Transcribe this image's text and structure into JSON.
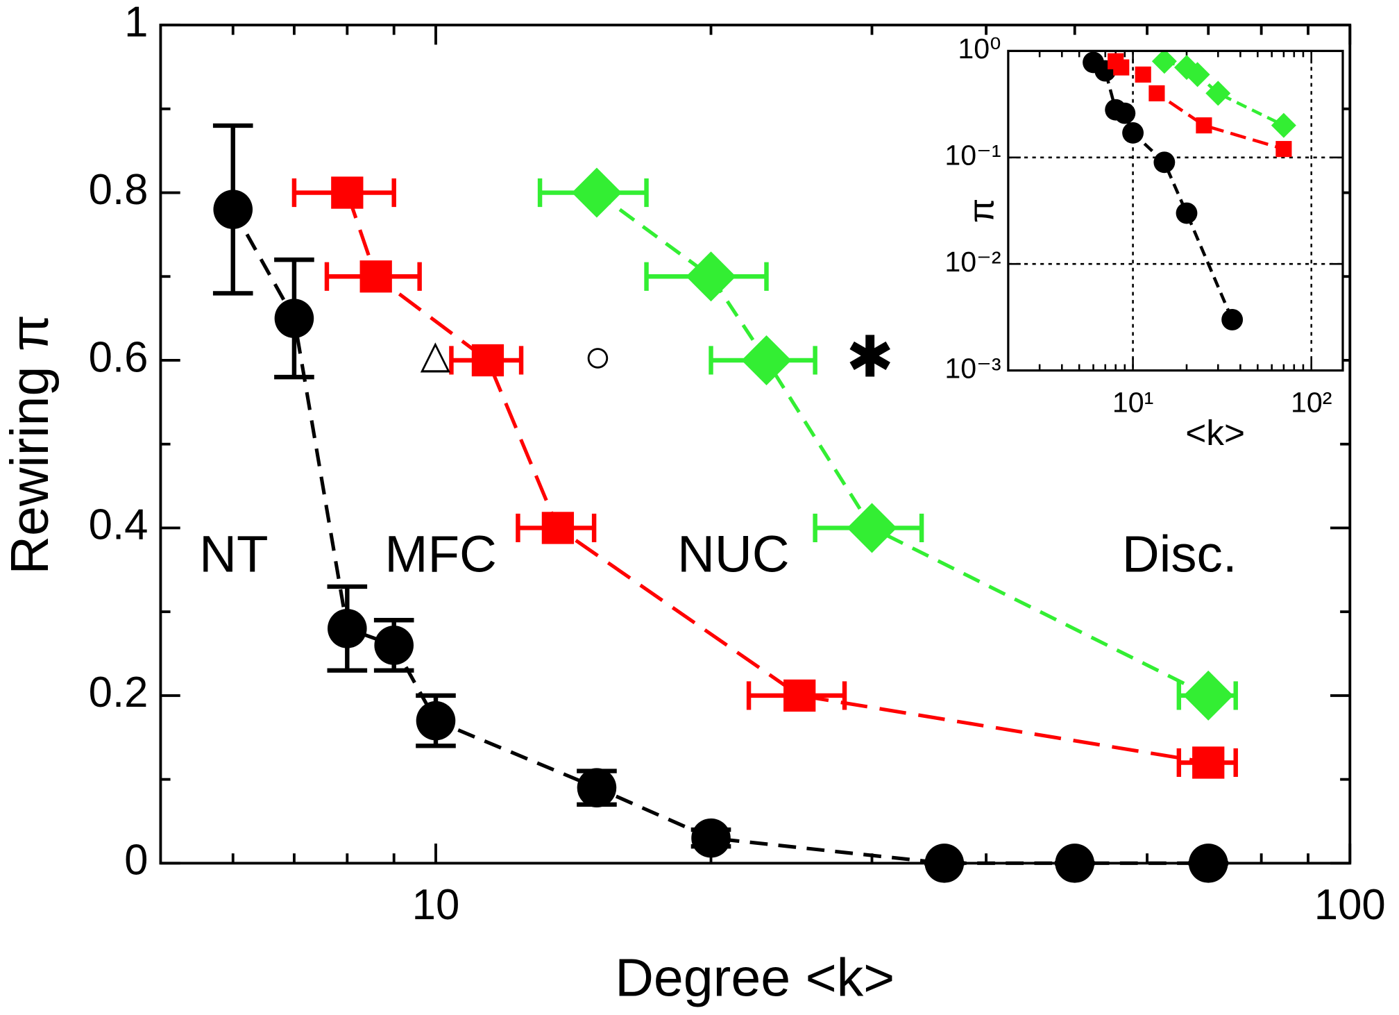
{
  "chart_data": [
    {
      "type": "scatter",
      "xlabel": "Degree <k>",
      "ylabel": "Rewiring π",
      "xscale": "log",
      "xlim": [
        5,
        100
      ],
      "xticks": [
        10,
        100
      ],
      "xminor": [
        6,
        7,
        8,
        9,
        20,
        30,
        40,
        50,
        60,
        70,
        80,
        90
      ],
      "ylim": [
        0,
        1
      ],
      "yticks": [
        0,
        0.2,
        0.4,
        0.6,
        0.8,
        1
      ],
      "yminor": [
        0.1,
        0.3,
        0.5,
        0.7,
        0.9
      ],
      "annotations": [
        "NT",
        "MFC",
        "NUC",
        "Disc.",
        "△",
        "○",
        "✱"
      ],
      "series": [
        {
          "color": "#000000",
          "marker": "circle",
          "dash": "short",
          "x": [
            6,
            7,
            8,
            9,
            10,
            15,
            20,
            36,
            50,
            70
          ],
          "values": [
            0.78,
            0.65,
            0.28,
            0.26,
            0.17,
            0.09,
            0.03,
            0,
            0,
            0
          ],
          "yerr": [
            0.1,
            0.07,
            0.05,
            0.03,
            0.03,
            0.02,
            0.01,
            0,
            0,
            0
          ]
        },
        {
          "color": "#ff0000",
          "marker": "square",
          "dash": "long",
          "x": [
            8,
            8.6,
            11.4,
            13.6,
            25,
            70
          ],
          "values": [
            0.8,
            0.7,
            0.6,
            0.4,
            0.2,
            0.12
          ],
          "xerr": [
            1,
            1,
            1,
            1.3,
            3,
            5
          ]
        },
        {
          "color": "#33ee33",
          "marker": "diamond",
          "dash": "short",
          "x": [
            15,
            20,
            23,
            30,
            70
          ],
          "values": [
            0.8,
            0.7,
            0.6,
            0.4,
            0.2
          ],
          "xerr": [
            2,
            3,
            3,
            4,
            5
          ]
        }
      ]
    },
    {
      "type": "scatter",
      "xlabel": "<k>",
      "ylabel": "π",
      "xscale": "log",
      "xlim": [
        2,
        150
      ],
      "xticks": [
        {
          "value": 10,
          "label": "10¹"
        },
        {
          "value": 100,
          "label": "10²"
        }
      ],
      "xminor": [
        3,
        4,
        5,
        6,
        7,
        8,
        9,
        20,
        30,
        40,
        50,
        60,
        70,
        80,
        90
      ],
      "yscale": "log",
      "ylim": [
        0.001,
        1
      ],
      "yticks": [
        {
          "value": 0.001,
          "label": "10⁻³"
        },
        {
          "value": 0.01,
          "label": "10⁻²"
        },
        {
          "value": 0.1,
          "label": "10⁻¹"
        },
        {
          "value": 1,
          "label": "10⁰"
        }
      ],
      "grid": true,
      "series": [
        {
          "color": "#000000",
          "marker": "circle",
          "dash": "short",
          "x": [
            6,
            7,
            8,
            9,
            10,
            15,
            20,
            36
          ],
          "values": [
            0.78,
            0.65,
            0.28,
            0.26,
            0.17,
            0.09,
            0.03,
            0.003
          ]
        },
        {
          "color": "#ff0000",
          "marker": "square",
          "dash": "long",
          "x": [
            8,
            8.6,
            11.4,
            13.6,
            25,
            70
          ],
          "values": [
            0.8,
            0.7,
            0.6,
            0.4,
            0.2,
            0.12
          ]
        },
        {
          "color": "#33ee33",
          "marker": "diamond",
          "dash": "short",
          "x": [
            15,
            20,
            23,
            30,
            70
          ],
          "values": [
            0.8,
            0.7,
            0.6,
            0.4,
            0.2
          ]
        }
      ]
    }
  ]
}
